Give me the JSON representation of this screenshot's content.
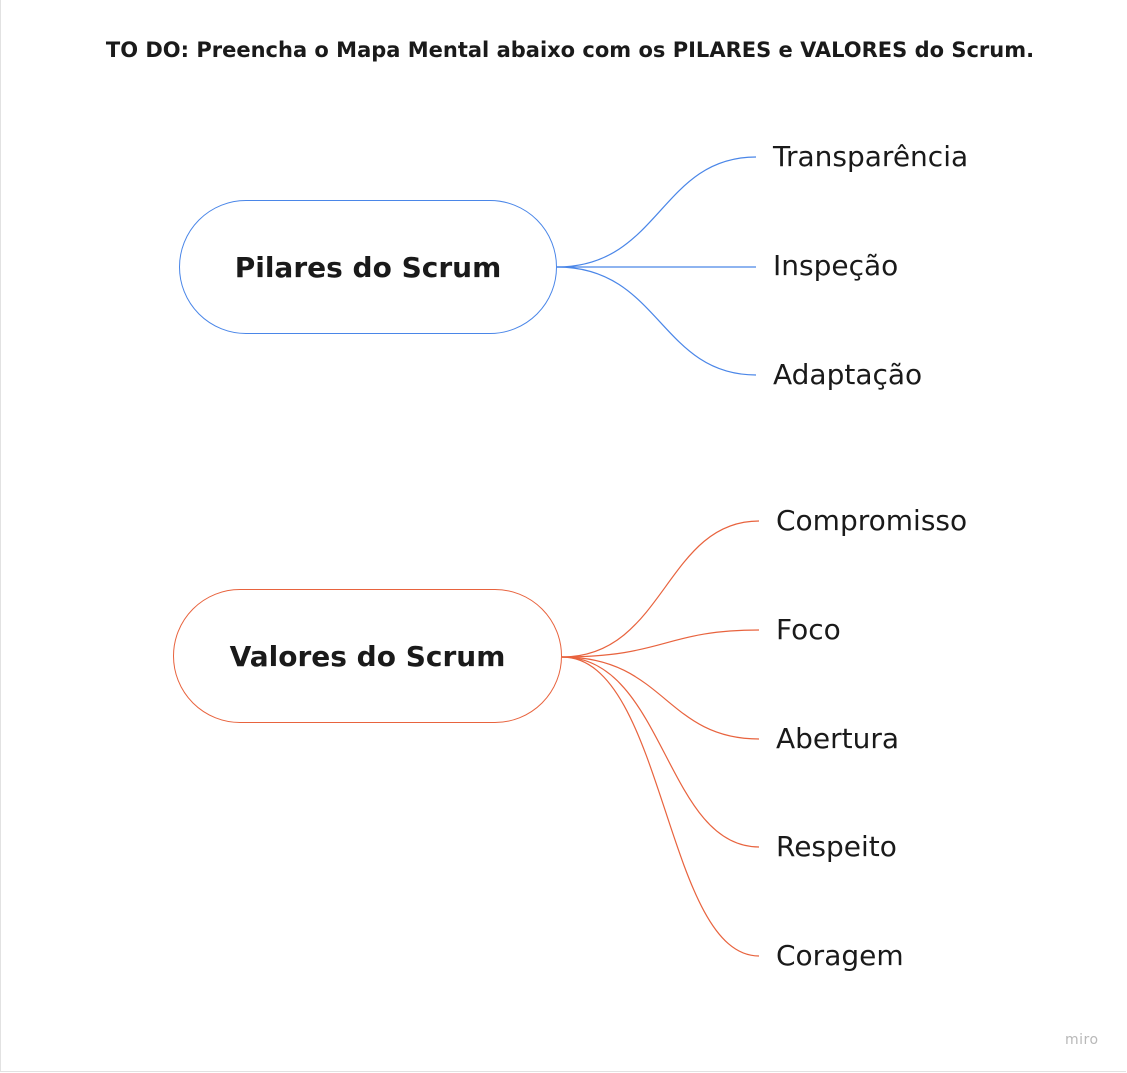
{
  "instruction": "TO DO: Preencha o Mapa Mental abaixo com os PILARES e VALORES do Scrum.",
  "colors": {
    "pilares_branch": "#4a86e8",
    "valores_branch": "#e8633e"
  },
  "mindmaps": [
    {
      "root": "Pilares do Scrum",
      "children": [
        "Transparência",
        "Inspeção",
        "Adaptação"
      ]
    },
    {
      "root": "Valores do Scrum",
      "children": [
        "Compromisso",
        "Foco",
        "Abertura",
        "Respeito",
        "Coragem"
      ]
    }
  ],
  "watermark": "miro"
}
